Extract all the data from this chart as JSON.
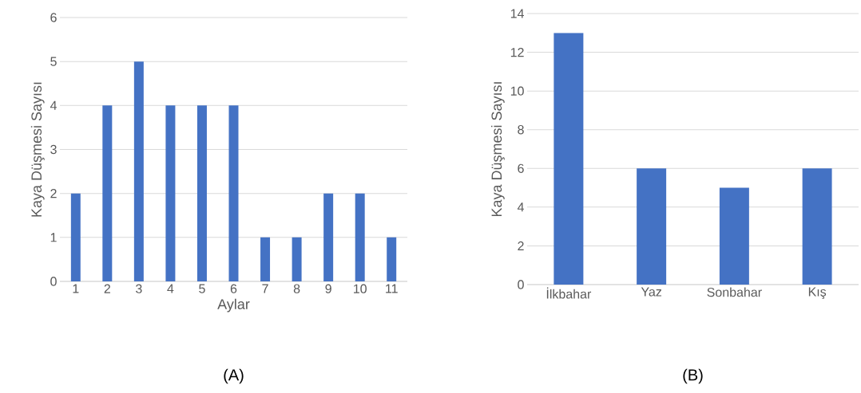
{
  "chart_data": [
    {
      "type": "bar",
      "categories": [
        "1",
        "2",
        "3",
        "4",
        "5",
        "6",
        "7",
        "8",
        "9",
        "10",
        "11"
      ],
      "values": [
        2,
        4,
        5,
        4,
        4,
        4,
        1,
        1,
        2,
        2,
        1
      ],
      "color": "#4472c4",
      "xlabel": "Aylar",
      "ylabel": "Kaya Düşmesi Sayısı",
      "ylim": [
        0,
        6
      ],
      "yticks": [
        0,
        1,
        2,
        3,
        4,
        5,
        6
      ],
      "grid": "y",
      "annotations": [
        "(A)"
      ]
    },
    {
      "type": "bar",
      "categories": [
        "İlkbahar",
        "Yaz",
        "Sonbahar",
        "Kış"
      ],
      "values": [
        13,
        6,
        5,
        6
      ],
      "color": "#4472c4",
      "ylabel": "Kaya Düşmesi Sayısı",
      "ylim": [
        0,
        14
      ],
      "yticks": [
        0,
        2,
        4,
        6,
        8,
        10,
        12,
        14
      ],
      "grid": "y",
      "annotations": [
        "(B)"
      ]
    }
  ]
}
